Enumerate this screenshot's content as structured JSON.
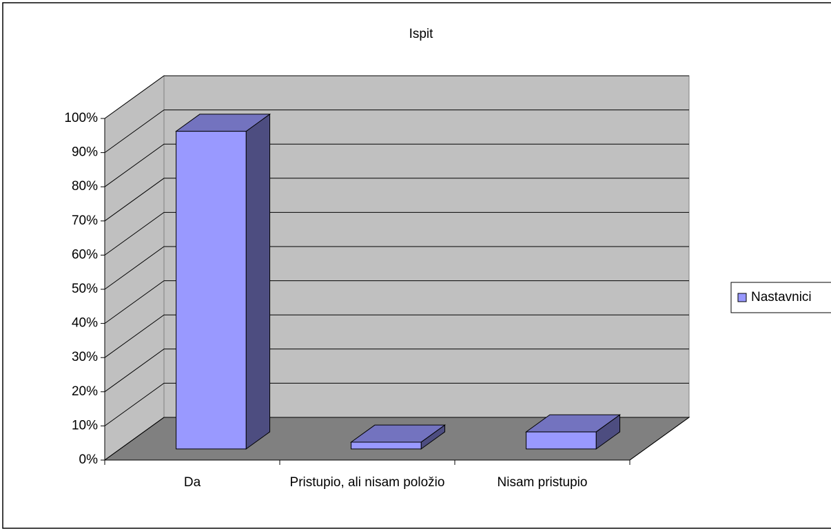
{
  "chart_data": {
    "type": "bar",
    "title": "Ispit",
    "categories": [
      "Da",
      "Pristupio, ali nisam položio",
      "Nisam pristupio"
    ],
    "series": [
      {
        "name": "Nastavnici",
        "color": "#9999ff",
        "values": [
          93,
          2,
          5
        ]
      }
    ],
    "ylim": [
      0,
      100
    ],
    "yticks": [
      {
        "value": 0,
        "label": "0%"
      },
      {
        "value": 10,
        "label": "10%"
      },
      {
        "value": 20,
        "label": "20%"
      },
      {
        "value": 30,
        "label": "30%"
      },
      {
        "value": 40,
        "label": "40%"
      },
      {
        "value": 50,
        "label": "50%"
      },
      {
        "value": 60,
        "label": "60%"
      },
      {
        "value": 70,
        "label": "70%"
      },
      {
        "value": 80,
        "label": "80%"
      },
      {
        "value": 90,
        "label": "90%"
      },
      {
        "value": 100,
        "label": "100%"
      }
    ],
    "grid": true,
    "legend": "right"
  }
}
